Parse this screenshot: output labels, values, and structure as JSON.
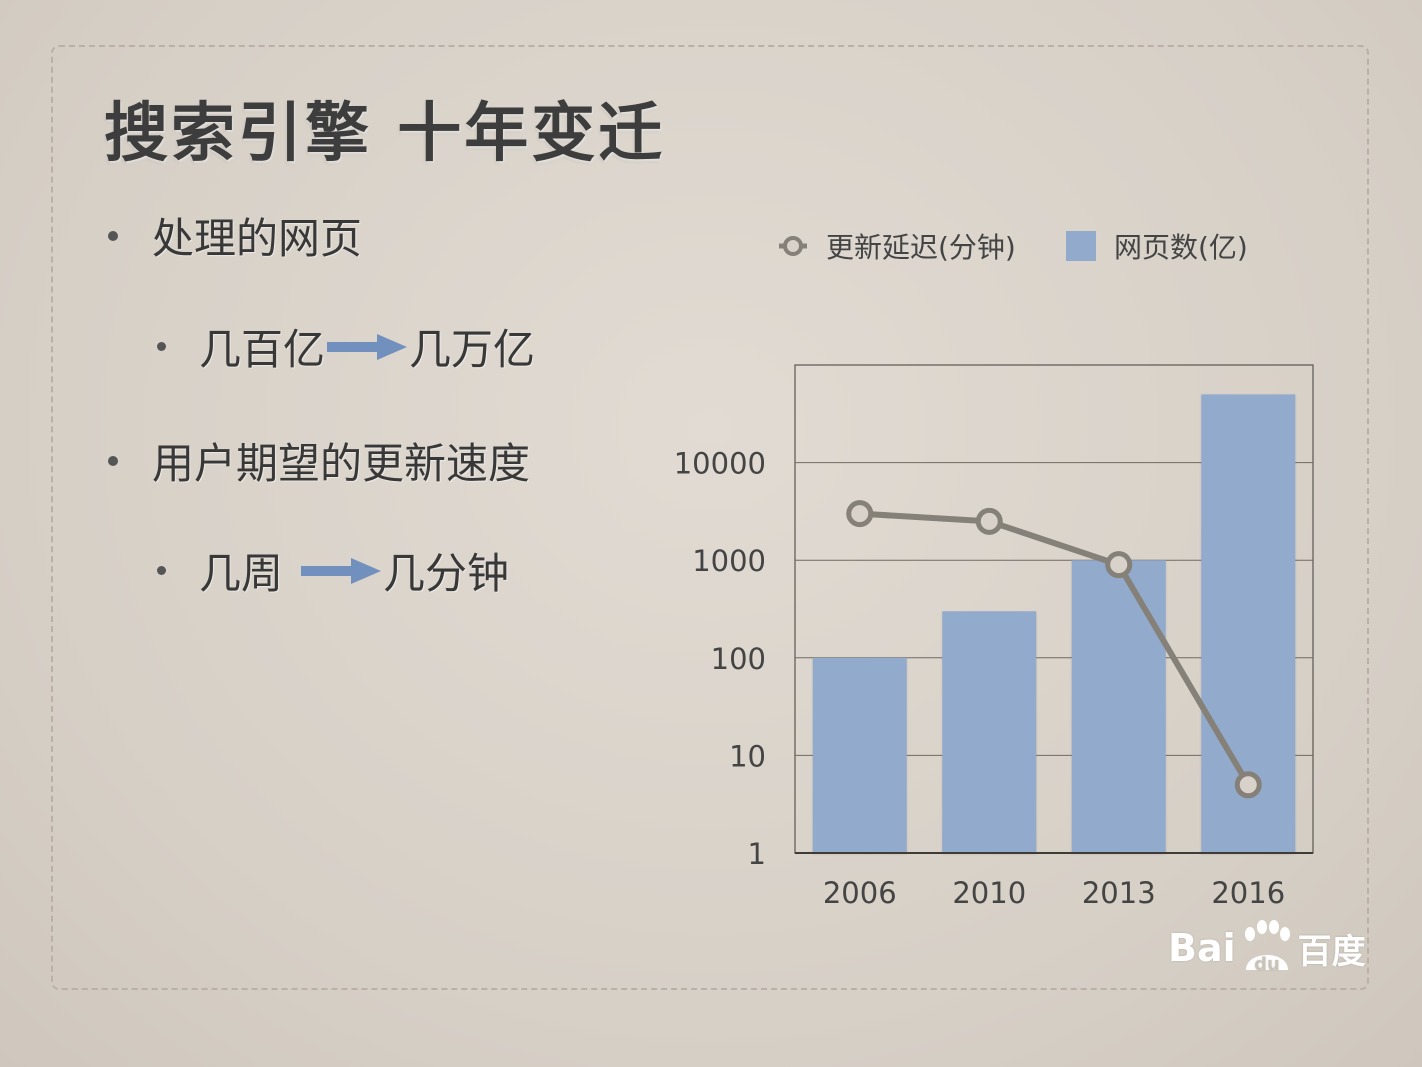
{
  "slide": {
    "title": "搜索引擎 十年变迁",
    "bullets": [
      {
        "level": 1,
        "text": "处理的网页"
      },
      {
        "level": 2,
        "from": "几百亿",
        "to": "几万亿"
      },
      {
        "level": 1,
        "text": "用户期望的更新速度"
      },
      {
        "level": 2,
        "from": "几周",
        "to": "几分钟"
      }
    ],
    "arrow_color": "#7190bd"
  },
  "chart_data": {
    "type": "bar",
    "y_scale": "log",
    "ylim": [
      1,
      100000
    ],
    "y_ticks": [
      "1",
      "10",
      "100",
      "1000",
      "10000"
    ],
    "categories": [
      "2006",
      "2010",
      "2013",
      "2016"
    ],
    "legend_position": "top",
    "grid": true,
    "series": [
      {
        "name": "网页数(亿)",
        "type": "bar",
        "color": "#92aacc",
        "values": [
          100,
          300,
          1000,
          50000
        ]
      },
      {
        "name": "更新延迟(分钟)",
        "type": "line",
        "color": "#858078",
        "values": [
          3000,
          2500,
          900,
          5
        ]
      }
    ]
  },
  "watermark": {
    "latin": "Bai",
    "paw_text": "du",
    "cn": "百度"
  }
}
